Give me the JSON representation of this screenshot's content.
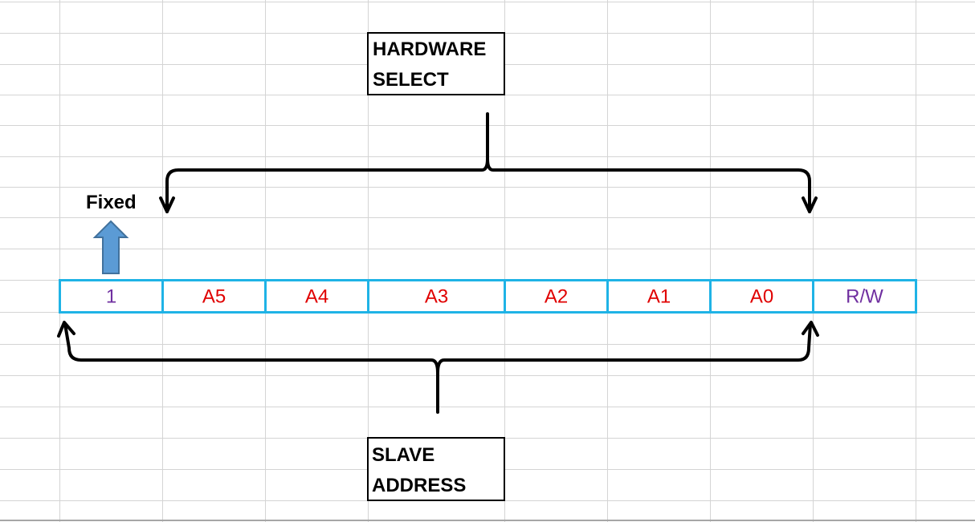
{
  "colors": {
    "cell_border": "#1fb3e6",
    "fixed_bit": "#7030a0",
    "address_bit": "#e00000",
    "rw_bit": "#7030a0",
    "arrow_fill": "#5b9bd5",
    "arrow_stroke": "#41719c",
    "grid": "#d4d4d4"
  },
  "bits": [
    {
      "label": "1",
      "role": "fixed"
    },
    {
      "label": "A5",
      "role": "address"
    },
    {
      "label": "A4",
      "role": "address"
    },
    {
      "label": "A3",
      "role": "address"
    },
    {
      "label": "A2",
      "role": "address"
    },
    {
      "label": "A1",
      "role": "address"
    },
    {
      "label": "A0",
      "role": "address"
    },
    {
      "label": "R/W",
      "role": "rw"
    }
  ],
  "hardware_select": {
    "line1": "HARDWARE",
    "line2": "SELECT"
  },
  "slave_address": {
    "line1": "SLAVE",
    "line2": "ADDRESS"
  },
  "fixed_label": "Fixed",
  "icons": {
    "fixed_arrow": "up-arrow-icon",
    "brace_arrows": "curly-brace-arrow"
  }
}
